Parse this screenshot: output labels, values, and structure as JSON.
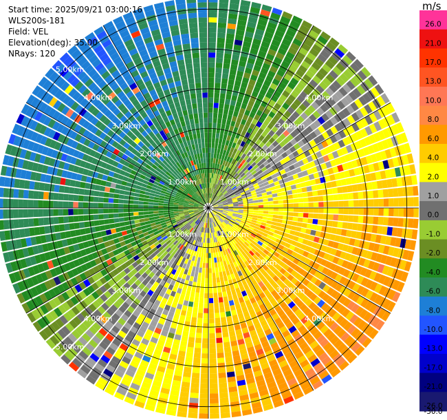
{
  "info": {
    "start_time": "Start time: 2025/09/21 03:00:16",
    "site": "WLS200s-181",
    "field": "Field: VEL",
    "elevation": "Elevation(deg): 35.00",
    "nrays": "NRays: 120"
  },
  "colorbar": {
    "unit": "m/s",
    "ticks": [
      "26.0",
      "21.0",
      "17.0",
      "13.0",
      "10.0",
      "8.0",
      "6.0",
      "4.0",
      "2.0",
      "1.0",
      "0.0",
      "-1.0",
      "-2.0",
      "-4.0",
      "-6.0",
      "-8.0",
      "-10.0",
      "-13.0",
      "-17.0",
      "-21.0",
      "-26.0",
      "-30.0"
    ],
    "colors": [
      "#ff3399",
      "#ee1111",
      "#ff3300",
      "#ff5522",
      "#ff7755",
      "#ff8844",
      "#ff9900",
      "#ffcc00",
      "#ffff00",
      "#a0a0a0",
      "#707070",
      "#99cc33",
      "#6b8e23",
      "#228b22",
      "#2e8b57",
      "#1e7fd6",
      "#2255ff",
      "#0000ff",
      "#0000cc",
      "#000080",
      "#191970"
    ]
  },
  "chart_data": {
    "type": "ppi",
    "title": "",
    "range_unit": "km",
    "max_range_km": 5.3,
    "range_rings_km": [
      1,
      2,
      3,
      4,
      5
    ],
    "ring_labels": [
      "1.00km",
      "2.00km",
      "3.00km",
      "4.00km",
      "5.00km"
    ],
    "spoke_angles_deg": [
      0,
      30,
      60,
      90,
      120,
      150,
      180,
      210,
      240,
      270,
      300,
      330
    ],
    "nrays": 120,
    "value_range": [
      -30,
      26
    ]
  }
}
